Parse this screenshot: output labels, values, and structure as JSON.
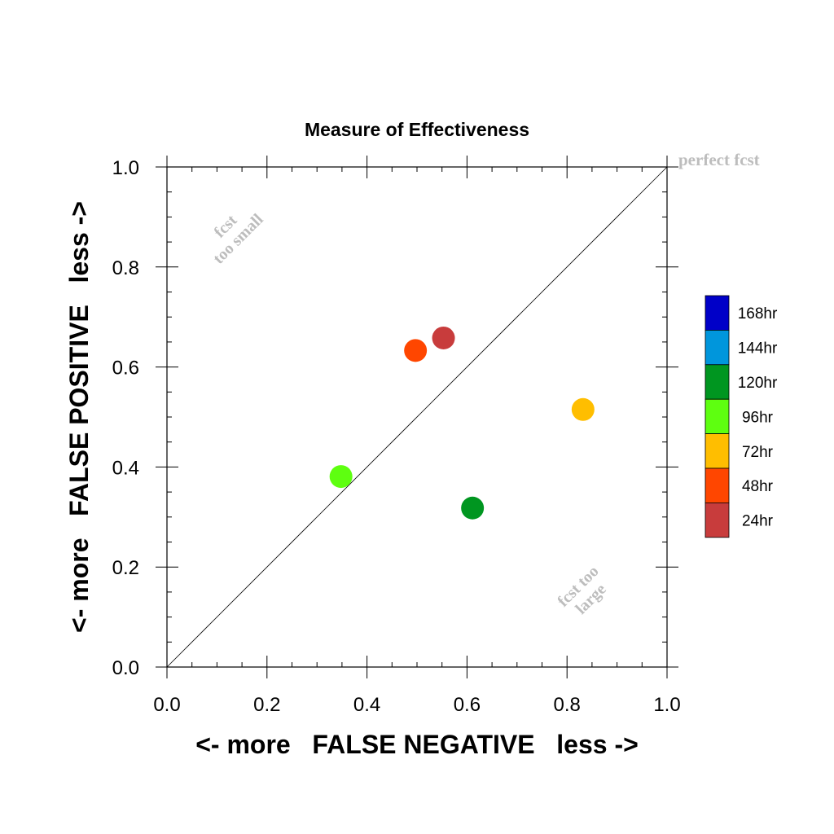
{
  "chart_data": {
    "type": "scatter",
    "title": "Measure of Effectiveness",
    "xlabel": "<- more   FALSE NEGATIVE   less ->",
    "ylabel": "<- more   FALSE POSITIVE   less ->",
    "xlim": [
      0.0,
      1.0
    ],
    "ylim": [
      0.0,
      1.0
    ],
    "x_ticks": [
      "0.0",
      "0.2",
      "0.4",
      "0.6",
      "0.8",
      "1.0"
    ],
    "y_ticks": [
      "0.0",
      "0.2",
      "0.4",
      "0.6",
      "0.8",
      "1.0"
    ],
    "grid": false,
    "diagonal": true,
    "annotations": {
      "perfect": "perfect fcst",
      "too_small_1": "fcst",
      "too_small_2": "too small",
      "too_large_1": "fcst too",
      "too_large_2": "large"
    },
    "legend": {
      "placement": "right",
      "entries": [
        {
          "label": "168hr",
          "color": "#0000c8"
        },
        {
          "label": "144hr",
          "color": "#0096dc"
        },
        {
          "label": "120hr",
          "color": "#009620"
        },
        {
          "label": "96hr",
          "color": "#5eff10"
        },
        {
          "label": "72hr",
          "color": "#ffbe00"
        },
        {
          "label": "48hr",
          "color": "#ff4600"
        },
        {
          "label": "24hr",
          "color": "#c83c3c"
        }
      ]
    },
    "points": [
      {
        "label": "24hr",
        "x": 0.553,
        "y": 0.658,
        "color": "#c83c3c"
      },
      {
        "label": "48hr",
        "x": 0.497,
        "y": 0.633,
        "color": "#ff4600"
      },
      {
        "label": "72hr",
        "x": 0.832,
        "y": 0.515,
        "color": "#ffbe00"
      },
      {
        "label": "96hr",
        "x": 0.348,
        "y": 0.381,
        "color": "#5eff10"
      },
      {
        "label": "120hr",
        "x": 0.611,
        "y": 0.318,
        "color": "#009620"
      }
    ]
  }
}
